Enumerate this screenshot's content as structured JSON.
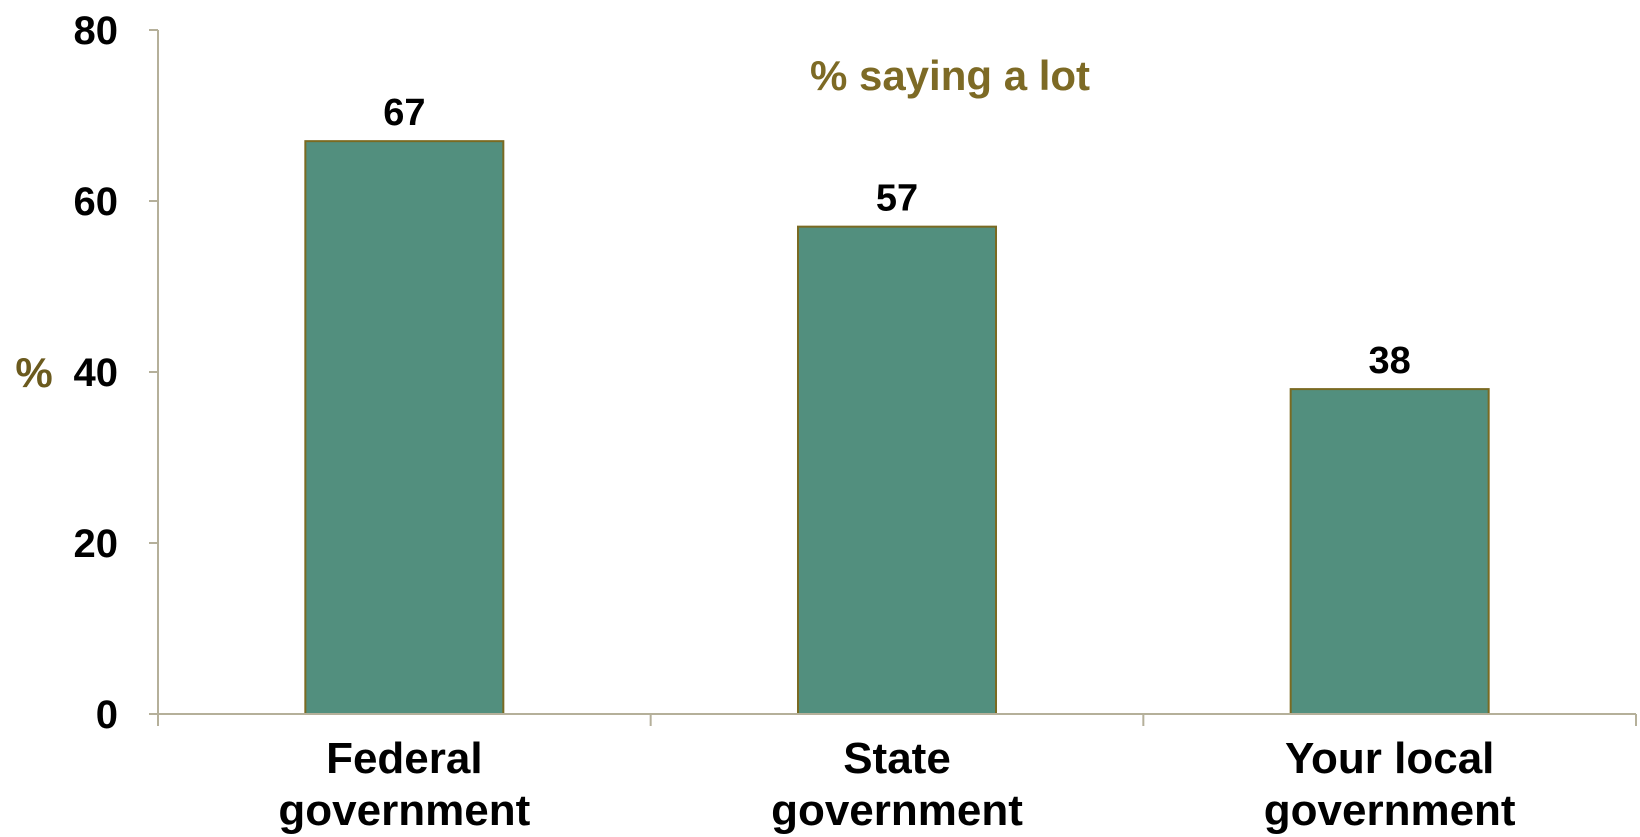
{
  "chart_data": {
    "type": "bar",
    "categories": [
      "Federal government",
      "State government",
      "Your local government"
    ],
    "category_lines": [
      [
        "Federal",
        "government"
      ],
      [
        "State",
        "government"
      ],
      [
        "Your local",
        "government"
      ]
    ],
    "values": [
      67,
      57,
      38
    ],
    "data_labels": [
      "67",
      "57",
      "38"
    ],
    "annotation": "% saying a lot",
    "ylabel": "%",
    "xlabel": "",
    "ylim": [
      0,
      80
    ],
    "yticks": [
      0,
      20,
      40,
      60,
      80
    ],
    "grid": false,
    "colors": {
      "bar_fill": "#528f7e",
      "bar_stroke": "#7a6a22",
      "axis": "#b5b09a",
      "annotation": "#7d6a25",
      "ylabel": "#6b5a1e"
    }
  }
}
